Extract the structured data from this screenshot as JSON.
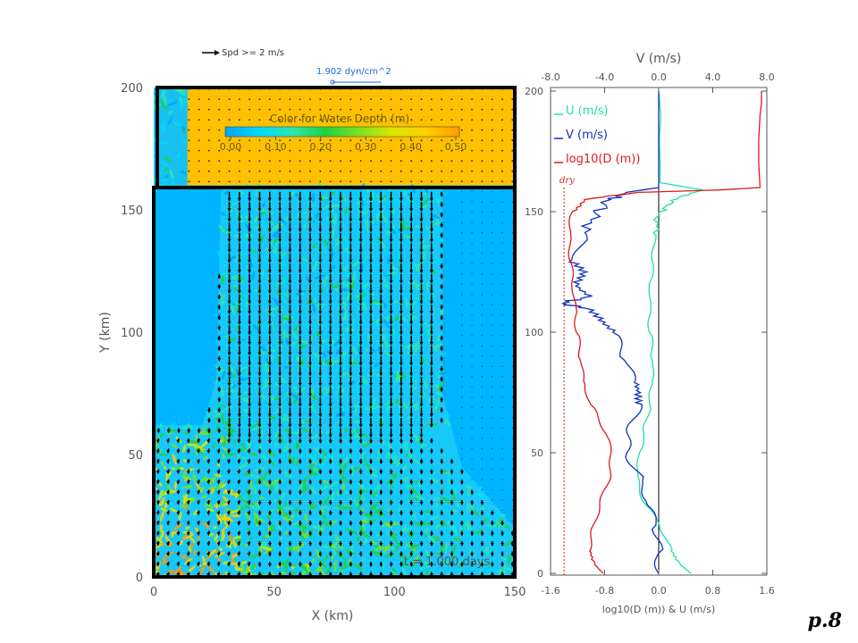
{
  "page_number": "p.8",
  "chart_data": [
    {
      "type": "heatmap",
      "title": "",
      "xlabel": "X (km)",
      "ylabel": "Y (km)",
      "xlim": [
        0,
        150
      ],
      "ylim": [
        0,
        200
      ],
      "x_ticks": [
        "0",
        "50",
        "100",
        "150"
      ],
      "y_ticks": [
        "0",
        "50",
        "100",
        "150",
        "200"
      ],
      "colorbar": {
        "title": "Color for Water Depth (m)",
        "tick_labels": [
          "0.00",
          "0.10",
          "0.20",
          "0.30",
          "0.40",
          "0.50"
        ],
        "range": [
          0,
          0.5
        ],
        "colors": [
          "#00a6ff",
          "#00d8ff",
          "#2ee6b0",
          "#22d040",
          "#7ee022",
          "#d8e800",
          "#ffd000",
          "#ff9a00"
        ]
      },
      "speed_legend": "Spd >= 2 m/s",
      "stress_legend": "1.902 dyn/cm^2",
      "time_label": "t = 1.000 days",
      "regions": [
        {
          "name": "upper basin dry",
          "color": "#ffc000",
          "y_range": [
            160,
            200
          ]
        },
        {
          "name": "lower basin dry",
          "color": "#00b4ff",
          "y_range": [
            0,
            160
          ]
        }
      ]
    },
    {
      "type": "line",
      "title": "",
      "top_axis_label": "V (m/s)",
      "top_ticks": [
        "-8.0",
        "-4.0",
        "0.0",
        "4.0",
        "8.0"
      ],
      "top_range": [
        -8,
        8
      ],
      "bottom_axis_label": "log10(D (m)) & U (m/s)",
      "bottom_ticks": [
        "-1.6",
        "-0.8",
        "0.0",
        "0.8",
        "1.6"
      ],
      "bottom_range": [
        -1.6,
        1.6
      ],
      "y_ticks": [
        "0",
        "50",
        "100",
        "150",
        "200"
      ],
      "ylim": [
        0,
        200
      ],
      "dry_label": "dry",
      "dry_value": -1.4,
      "series": [
        {
          "name": "U (m/s)",
          "axis": "bottom",
          "color": "#22e0a0",
          "y": [
            0,
            5,
            10,
            20,
            30,
            40,
            50,
            60,
            70,
            80,
            90,
            100,
            110,
            120,
            130,
            140,
            148,
            152,
            156,
            159,
            162,
            170,
            180,
            190,
            200
          ],
          "v": [
            0.48,
            0.3,
            0.15,
            0.0,
            -0.25,
            -0.35,
            -0.3,
            -0.22,
            -0.15,
            -0.1,
            -0.08,
            -0.12,
            -0.12,
            -0.1,
            -0.06,
            -0.04,
            -0.02,
            0.1,
            0.3,
            0.65,
            0.02,
            0.02,
            0.01,
            0.03,
            0.0
          ]
        },
        {
          "name": "V (m/s)",
          "axis": "top",
          "color": "#1030c0",
          "y": [
            0,
            10,
            20,
            30,
            40,
            50,
            60,
            70,
            75,
            80,
            90,
            100,
            105,
            110,
            112,
            115,
            120,
            125,
            130,
            140,
            148,
            155,
            158,
            160,
            170,
            180,
            190,
            200
          ],
          "v": [
            0.0,
            0.0,
            -0.2,
            -1.0,
            -1.6,
            -2.6,
            -2.4,
            -1.6,
            -1.2,
            -1.8,
            -2.5,
            -3.2,
            -4.0,
            -5.5,
            -7.2,
            -5.0,
            -6.0,
            -5.8,
            -6.4,
            -5.6,
            -4.8,
            -3.6,
            -2.4,
            0.0,
            0.0,
            0.0,
            0.0,
            0.0
          ]
        },
        {
          "name": "log10(D (m))",
          "axis": "bottom",
          "color": "#e01818",
          "y": [
            0,
            5,
            10,
            20,
            30,
            40,
            50,
            60,
            70,
            80,
            90,
            100,
            110,
            120,
            130,
            140,
            150,
            155,
            158,
            159,
            160,
            170,
            180,
            190,
            195,
            200
          ],
          "v": [
            -0.82,
            -0.95,
            -1.05,
            -0.98,
            -0.88,
            -0.75,
            -0.72,
            -0.82,
            -1.02,
            -1.12,
            -1.15,
            -1.2,
            -1.22,
            -1.25,
            -1.28,
            -1.3,
            -1.26,
            -1.12,
            -0.3,
            0.9,
            1.5,
            1.48,
            1.48,
            1.5,
            1.52,
            1.52
          ]
        }
      ]
    }
  ]
}
